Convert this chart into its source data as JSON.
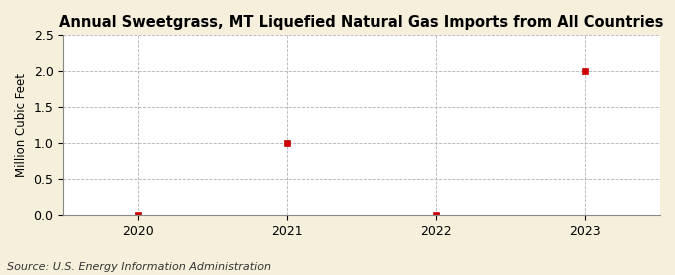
{
  "title": "Annual Sweetgrass, MT Liquefied Natural Gas Imports from All Countries",
  "ylabel": "Million Cubic Feet",
  "source": "Source: U.S. Energy Information Administration",
  "x_values": [
    2020,
    2021,
    2022,
    2023
  ],
  "y_values": [
    0,
    1.0,
    0,
    2.0
  ],
  "xlim": [
    2019.5,
    2023.5
  ],
  "ylim": [
    0,
    2.5
  ],
  "yticks": [
    0.0,
    0.5,
    1.0,
    1.5,
    2.0,
    2.5
  ],
  "xticks": [
    2020,
    2021,
    2022,
    2023
  ],
  "marker_color": "#cc0000",
  "marker": "s",
  "marker_size": 4,
  "grid_color": "#aaaaaa",
  "background_color": "#f5efdc",
  "plot_bg_color": "#ffffff",
  "title_fontsize": 10.5,
  "label_fontsize": 8.5,
  "tick_fontsize": 9,
  "source_fontsize": 8
}
